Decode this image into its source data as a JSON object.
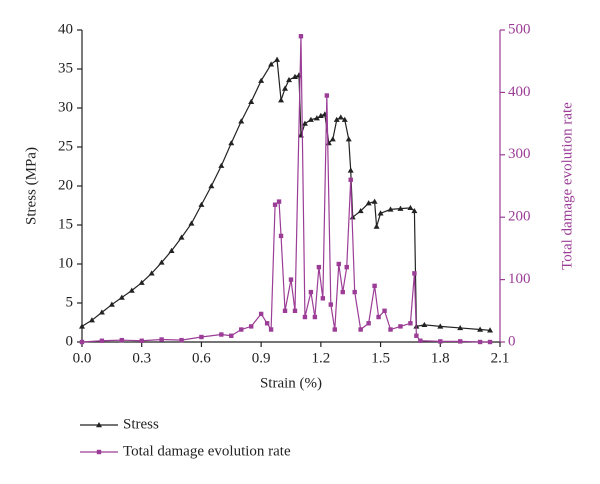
{
  "chart_data": {
    "type": "line",
    "x_label": "Strain (%)",
    "y_label": "Stress (MPa)",
    "y2_label": "Total damage evolution rate",
    "xlim": [
      0,
      2.1
    ],
    "xticks": [
      {
        "value": 0,
        "label": "0.0"
      },
      0.3,
      0.6,
      0.9,
      1.2,
      1.5,
      1.8,
      2.1
    ],
    "ylim": [
      0,
      40
    ],
    "yticks": [
      0,
      5,
      10,
      15,
      20,
      25,
      30,
      35,
      40
    ],
    "y2lim": [
      0,
      500
    ],
    "y2ticks": [
      0,
      100,
      200,
      300,
      400,
      500
    ],
    "series": [
      {
        "name": "Stress",
        "color": "#222222",
        "marker": "triangle",
        "x": [
          0,
          0.05,
          0.1,
          0.15,
          0.2,
          0.25,
          0.3,
          0.35,
          0.4,
          0.45,
          0.5,
          0.55,
          0.6,
          0.65,
          0.7,
          0.75,
          0.8,
          0.85,
          0.9,
          0.95,
          0.98,
          1.0,
          1.02,
          1.04,
          1.07,
          1.09,
          1.1,
          1.12,
          1.15,
          1.18,
          1.2,
          1.22,
          1.24,
          1.26,
          1.28,
          1.3,
          1.32,
          1.34,
          1.35,
          1.36,
          1.4,
          1.44,
          1.47,
          1.48,
          1.5,
          1.55,
          1.6,
          1.65,
          1.67,
          1.68,
          1.72,
          1.8,
          1.9,
          2.0,
          2.05
        ],
        "values": [
          2,
          2.8,
          3.8,
          4.8,
          5.7,
          6.6,
          7.6,
          8.8,
          10.2,
          11.7,
          13.4,
          15.2,
          17.6,
          20.0,
          22.6,
          25.5,
          28.3,
          30.8,
          33.5,
          35.6,
          36.2,
          31.0,
          32.5,
          33.6,
          34.0,
          34.2,
          26.5,
          28.0,
          28.5,
          28.7,
          29.0,
          29.2,
          25.5,
          26.0,
          28.5,
          28.8,
          28.5,
          26.0,
          22.0,
          16.0,
          16.8,
          17.8,
          18.0,
          14.8,
          16.5,
          17.0,
          17.1,
          17.2,
          16.8,
          2.0,
          2.2,
          2.0,
          1.8,
          1.6,
          1.5
        ]
      },
      {
        "name": "Total damage evolution rate",
        "color": "#9b3d96",
        "marker": "square",
        "axis": "y2",
        "x": [
          0,
          0.1,
          0.2,
          0.3,
          0.4,
          0.5,
          0.6,
          0.7,
          0.75,
          0.8,
          0.85,
          0.9,
          0.93,
          0.95,
          0.97,
          0.99,
          1.0,
          1.02,
          1.05,
          1.07,
          1.1,
          1.12,
          1.15,
          1.17,
          1.19,
          1.21,
          1.23,
          1.25,
          1.27,
          1.29,
          1.31,
          1.33,
          1.35,
          1.37,
          1.4,
          1.44,
          1.47,
          1.49,
          1.52,
          1.55,
          1.6,
          1.65,
          1.67,
          1.68,
          1.7,
          1.8,
          1.9,
          2.0,
          2.05
        ],
        "values": [
          0,
          2,
          3,
          2,
          4,
          3,
          8,
          12,
          10,
          20,
          25,
          45,
          30,
          20,
          220,
          225,
          170,
          50,
          100,
          50,
          490,
          40,
          80,
          40,
          120,
          70,
          395,
          60,
          20,
          125,
          80,
          120,
          260,
          80,
          20,
          30,
          90,
          40,
          50,
          20,
          25,
          30,
          110,
          10,
          2,
          1,
          1,
          0,
          0
        ]
      }
    ]
  }
}
